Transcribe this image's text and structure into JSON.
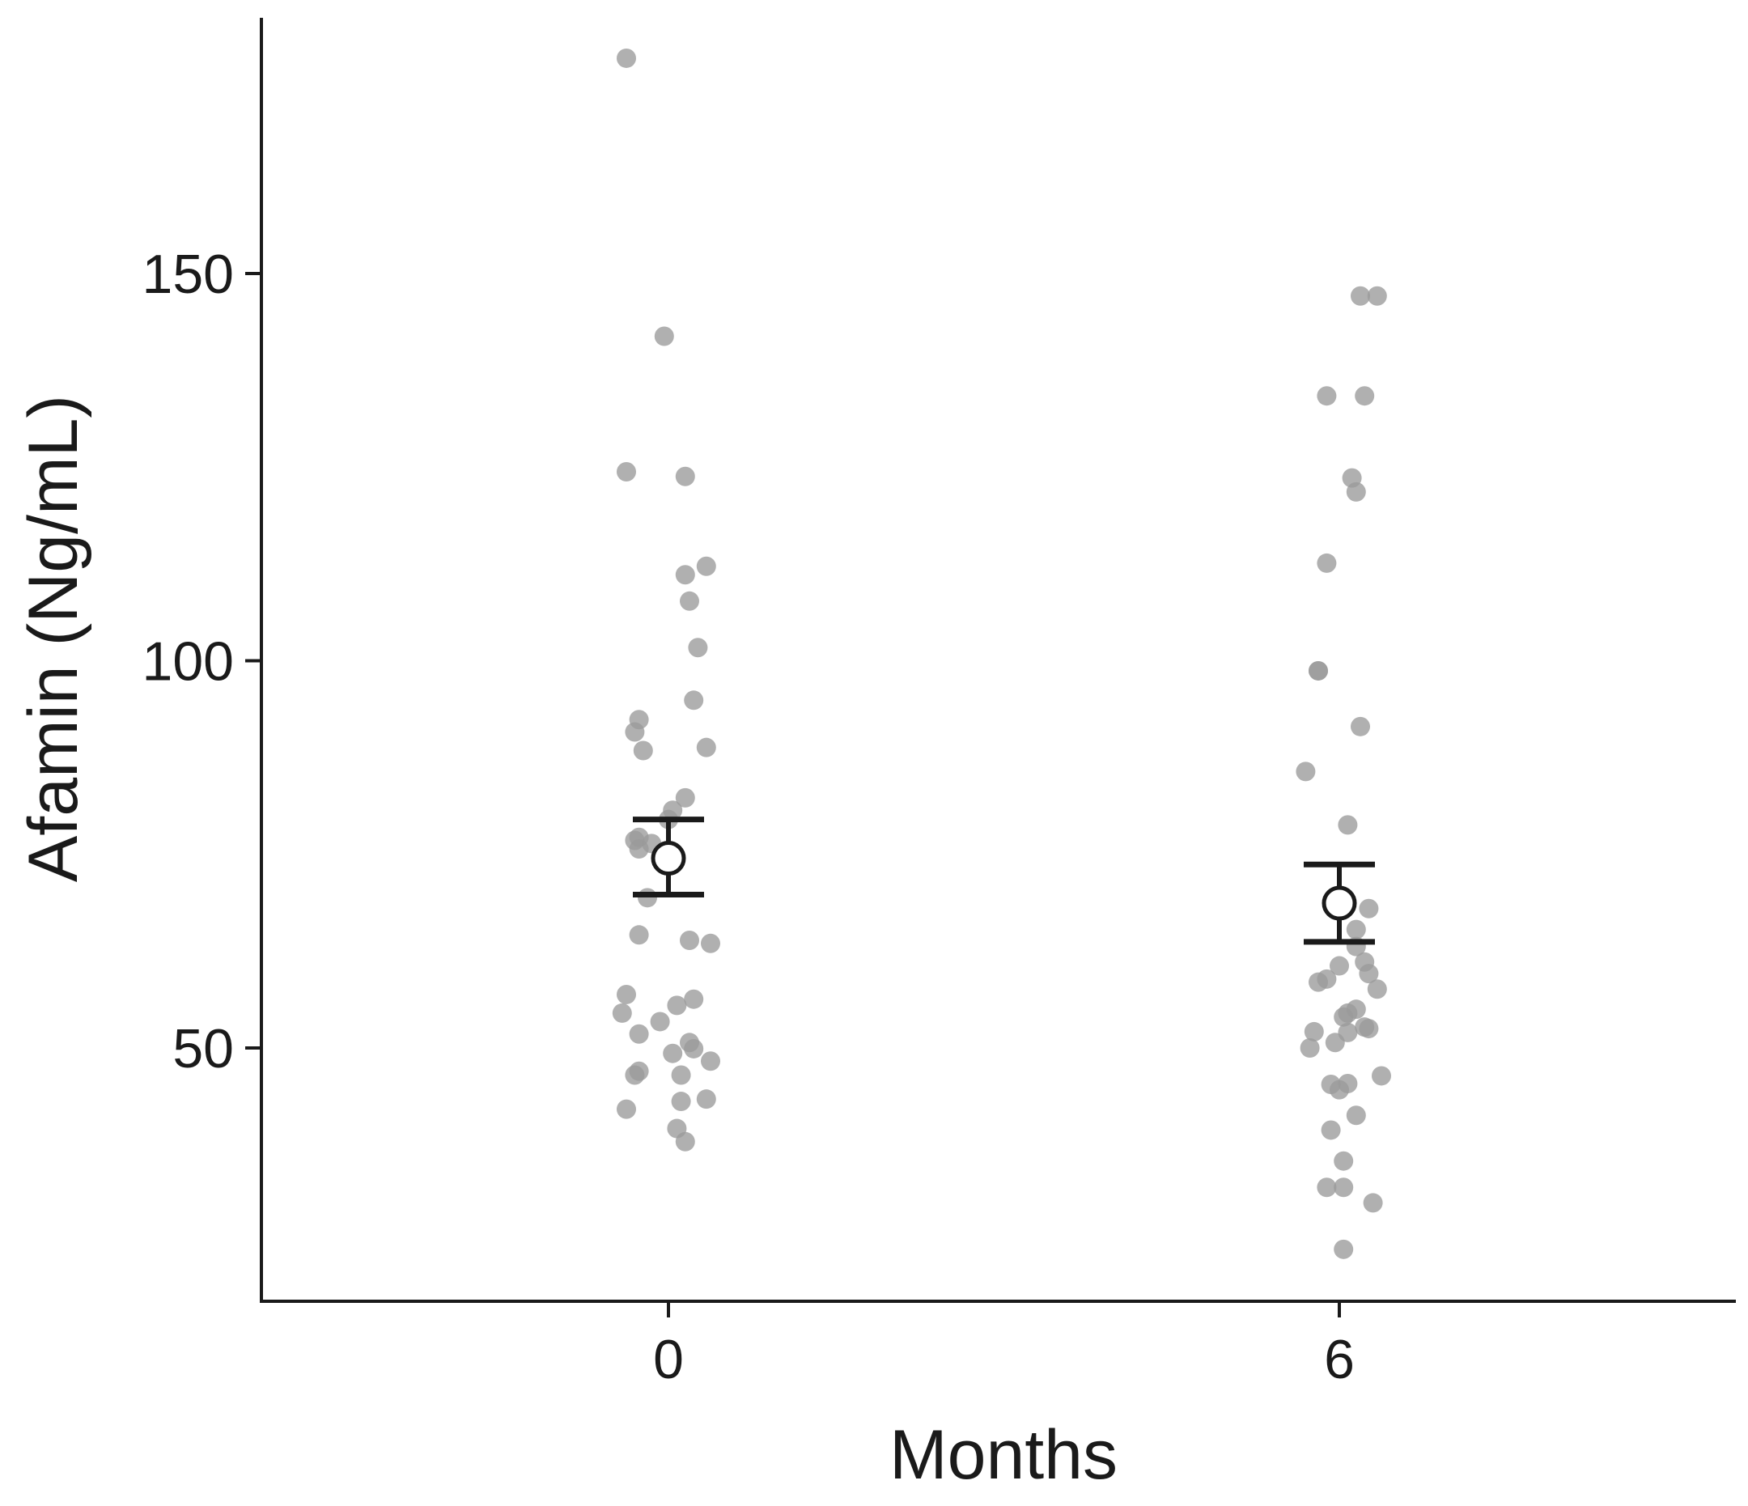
{
  "chart_data": {
    "type": "scatter",
    "title": "",
    "xlabel": "Months",
    "ylabel": "Afamin (Ng/mL)",
    "categories": [
      "0",
      "6"
    ],
    "ylim": [
      18,
      183
    ],
    "yticks": [
      50,
      100,
      150
    ],
    "grid": false,
    "legend": "none",
    "colors": {
      "points": "#9a9a9a",
      "axis": "#1a1a1a",
      "mean_fill": "#ffffff",
      "mean_stroke": "#1a1a1a"
    },
    "groups": [
      {
        "category": "0",
        "points": [
          {
            "x": -0.1,
            "y": 177.8
          },
          {
            "x": -0.01,
            "y": 141.9
          },
          {
            "x": -0.1,
            "y": 124.4
          },
          {
            "x": 0.04,
            "y": 123.8
          },
          {
            "x": 0.09,
            "y": 112.2
          },
          {
            "x": 0.04,
            "y": 111.1
          },
          {
            "x": 0.05,
            "y": 107.7
          },
          {
            "x": 0.07,
            "y": 101.7
          },
          {
            "x": 0.06,
            "y": 94.9
          },
          {
            "x": -0.07,
            "y": 92.4
          },
          {
            "x": -0.08,
            "y": 90.8
          },
          {
            "x": -0.06,
            "y": 88.4
          },
          {
            "x": 0.09,
            "y": 88.8
          },
          {
            "x": 0.04,
            "y": 82.3
          },
          {
            "x": 0.01,
            "y": 80.7
          },
          {
            "x": 0.0,
            "y": 79.5
          },
          {
            "x": -0.07,
            "y": 77.2
          },
          {
            "x": -0.08,
            "y": 76.8
          },
          {
            "x": -0.07,
            "y": 75.7
          },
          {
            "x": -0.04,
            "y": 76.4
          },
          {
            "x": -0.05,
            "y": 69.4
          },
          {
            "x": -0.07,
            "y": 64.6
          },
          {
            "x": 0.05,
            "y": 63.9
          },
          {
            "x": 0.1,
            "y": 63.5
          },
          {
            "x": -0.1,
            "y": 56.9
          },
          {
            "x": 0.02,
            "y": 55.5
          },
          {
            "x": 0.06,
            "y": 56.3
          },
          {
            "x": -0.11,
            "y": 54.5
          },
          {
            "x": -0.02,
            "y": 53.4
          },
          {
            "x": -0.07,
            "y": 51.8
          },
          {
            "x": 0.05,
            "y": 50.7
          },
          {
            "x": 0.06,
            "y": 49.9
          },
          {
            "x": 0.01,
            "y": 49.3
          },
          {
            "x": 0.1,
            "y": 48.3
          },
          {
            "x": -0.07,
            "y": 47.0
          },
          {
            "x": -0.08,
            "y": 46.5
          },
          {
            "x": 0.03,
            "y": 46.5
          },
          {
            "x": 0.09,
            "y": 43.4
          },
          {
            "x": 0.03,
            "y": 43.1
          },
          {
            "x": -0.1,
            "y": 42.1
          },
          {
            "x": 0.02,
            "y": 39.6
          },
          {
            "x": 0.04,
            "y": 37.9
          }
        ],
        "mean": 74.5,
        "error_low": 69.8,
        "error_high": 79.5
      },
      {
        "category": "6",
        "points": [
          {
            "x": 0.05,
            "y": 147.1
          },
          {
            "x": 0.09,
            "y": 147.1
          },
          {
            "x": -0.03,
            "y": 134.2
          },
          {
            "x": 0.06,
            "y": 134.2
          },
          {
            "x": 0.03,
            "y": 123.6
          },
          {
            "x": 0.04,
            "y": 121.8
          },
          {
            "x": -0.03,
            "y": 112.6
          },
          {
            "x": -0.05,
            "y": 98.7
          },
          {
            "x": -0.05,
            "y": 98.7
          },
          {
            "x": 0.05,
            "y": 91.5
          },
          {
            "x": -0.08,
            "y": 85.7
          },
          {
            "x": 0.02,
            "y": 78.8
          },
          {
            "x": 0.07,
            "y": 68.0
          },
          {
            "x": 0.04,
            "y": 65.3
          },
          {
            "x": 0.04,
            "y": 63.1
          },
          {
            "x": 0.06,
            "y": 61.1
          },
          {
            "x": 0.0,
            "y": 60.6
          },
          {
            "x": -0.03,
            "y": 58.9
          },
          {
            "x": 0.07,
            "y": 59.6
          },
          {
            "x": -0.05,
            "y": 58.5
          },
          {
            "x": 0.09,
            "y": 57.6
          },
          {
            "x": 0.04,
            "y": 55.0
          },
          {
            "x": 0.02,
            "y": 54.5
          },
          {
            "x": 0.01,
            "y": 54.0
          },
          {
            "x": 0.06,
            "y": 52.7
          },
          {
            "x": 0.07,
            "y": 52.5
          },
          {
            "x": -0.06,
            "y": 52.1
          },
          {
            "x": 0.02,
            "y": 52.0
          },
          {
            "x": -0.01,
            "y": 50.7
          },
          {
            "x": -0.07,
            "y": 50.0
          },
          {
            "x": 0.1,
            "y": 46.4
          },
          {
            "x": -0.02,
            "y": 45.3
          },
          {
            "x": 0.02,
            "y": 45.4
          },
          {
            "x": 0.0,
            "y": 44.6
          },
          {
            "x": 0.04,
            "y": 41.3
          },
          {
            "x": -0.02,
            "y": 39.4
          },
          {
            "x": 0.01,
            "y": 35.4
          },
          {
            "x": -0.03,
            "y": 32.0
          },
          {
            "x": 0.01,
            "y": 32.0
          },
          {
            "x": 0.08,
            "y": 30.0
          },
          {
            "x": 0.01,
            "y": 24.0
          }
        ],
        "mean": 68.7,
        "error_low": 63.7,
        "error_high": 73.7
      }
    ]
  }
}
